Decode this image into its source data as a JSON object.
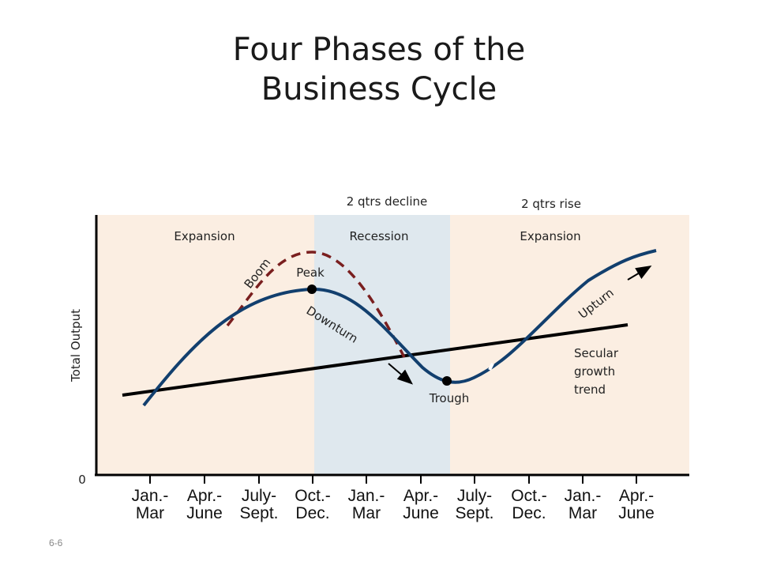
{
  "slide": {
    "title_line1": "Four Phases of the",
    "title_line2": "Business Cycle",
    "slide_number": "6-6"
  },
  "colors": {
    "expansion_bg": "#fbeee2",
    "recession_bg": "#dfe8ee",
    "cycle_line": "#123f6e",
    "boom_dashed": "#7a1f1f",
    "trend_line": "#000000"
  },
  "diagram": {
    "y_axis_label": "Total Output",
    "origin_label": "0",
    "phase_labels": [
      "Expansion",
      "Recession",
      "Expansion"
    ],
    "decline_note": "2 qtrs decline",
    "rise_note": "2 qtrs rise",
    "curve_labels": {
      "boom": "Boom",
      "peak": "Peak",
      "downturn": "Downturn",
      "trough": "Trough",
      "upturn": "Upturn"
    },
    "trend_label": [
      "Secular",
      "growth",
      "trend"
    ],
    "quarters": [
      [
        "Jan.-",
        "Mar"
      ],
      [
        "Apr.-",
        "June"
      ],
      [
        "July-",
        "Sept."
      ],
      [
        "Oct.-",
        "Dec."
      ],
      [
        "Jan.-",
        "Mar"
      ],
      [
        "Apr.-",
        "June"
      ],
      [
        "July-",
        "Sept."
      ],
      [
        "Oct.-",
        "Dec."
      ],
      [
        "Jan.-",
        "Mar"
      ],
      [
        "Apr.-",
        "June"
      ]
    ]
  }
}
